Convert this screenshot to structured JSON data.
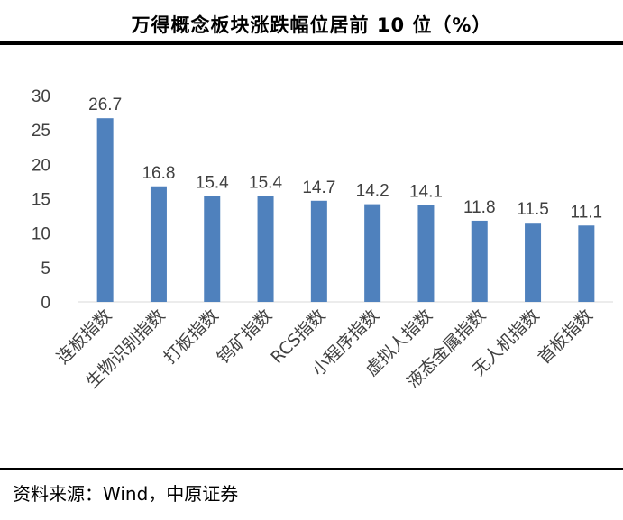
{
  "title": "万得概念板块涨跌幅位居前 10 位（%）",
  "source": "资料来源：Wind，中原证券",
  "chart_data": {
    "type": "bar",
    "title": "万得概念板块涨跌幅位居前 10 位（%）",
    "categories": [
      "连板指数",
      "生物识别指数",
      "打板指数",
      "钨矿指数",
      "RCS指数",
      "小程序指数",
      "虚拟人指数",
      "液态金属指数",
      "无人机指数",
      "首板指数"
    ],
    "values": [
      26.7,
      16.8,
      15.4,
      15.4,
      14.7,
      14.2,
      14.1,
      11.8,
      11.5,
      11.1
    ],
    "data_labels": [
      "26.7",
      "16.8",
      "15.4",
      "15.4",
      "14.7",
      "14.2",
      "14.1",
      "11.8",
      "11.5",
      "11.1"
    ],
    "ylim": [
      0,
      30
    ],
    "yticks": [
      0,
      5,
      10,
      15,
      20,
      25,
      30
    ],
    "xlabel": "",
    "ylabel": "",
    "grid": false,
    "legend": false,
    "bar_color": "#4f81bd",
    "label_color": "#404040"
  }
}
